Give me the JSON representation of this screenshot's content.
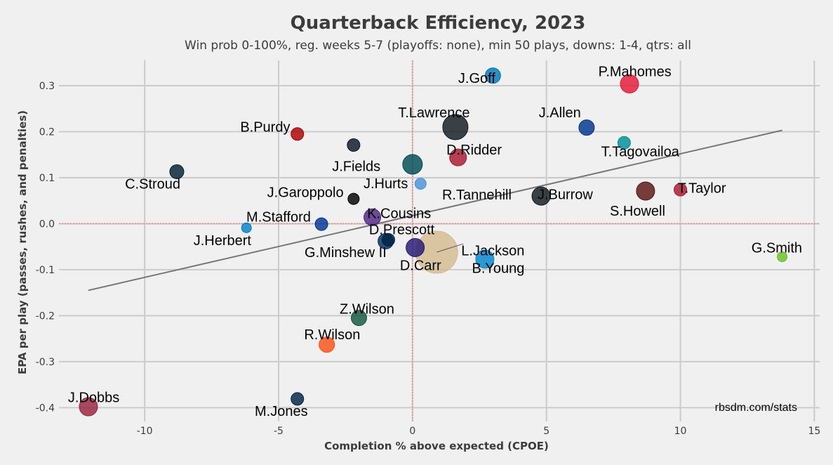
{
  "chart_data": {
    "type": "scatter",
    "title": "Quarterback Efficiency, 2023",
    "subtitle": "Win prob 0-100%, reg. weeks 5-7 (playoffs: none), min 50 plays, downs: 1-4, qtrs: all",
    "xlabel": "Completion % above expected (CPOE)",
    "ylabel": "EPA per play (passes, rushes, and penalties)",
    "xlim": [
      -13.2,
      15.2
    ],
    "ylim": [
      -0.43,
      0.355
    ],
    "xticks": [
      -10,
      -5,
      0,
      5,
      10,
      15
    ],
    "yticks": [
      -0.4,
      -0.3,
      -0.2,
      -0.1,
      0.0,
      0.1,
      0.2,
      0.3
    ],
    "ref_x": 0,
    "ref_y": 0,
    "ref_color": "#e8868c",
    "trend": {
      "x": [
        -12.1,
        13.8
      ],
      "y": [
        -0.145,
        0.203
      ],
      "color": "#777777"
    },
    "credit": "rbsdm.com/stats",
    "points": [
      {
        "name": "P.Mahomes",
        "x": 8.1,
        "y": 0.304,
        "size": 13,
        "color": "#e31837",
        "label_dx": 0.2,
        "label_dy": 0.027
      },
      {
        "name": "J.Goff",
        "x": 3.0,
        "y": 0.322,
        "size": 11,
        "color": "#0076b6",
        "label_dx": -0.6,
        "label_dy": -0.005
      },
      {
        "name": "T.Lawrence",
        "x": 1.6,
        "y": 0.21,
        "size": 18,
        "color": "#101820",
        "label_dx": -0.8,
        "label_dy": 0.032
      },
      {
        "name": "J.Allen",
        "x": 6.5,
        "y": 0.209,
        "size": 11,
        "color": "#00338d",
        "label_dx": -1.0,
        "label_dy": 0.033
      },
      {
        "name": "T.Tagovailoa",
        "x": 7.9,
        "y": 0.176,
        "size": 9,
        "color": "#008e97",
        "label_dx": 0.6,
        "label_dy": -0.019
      },
      {
        "name": "B.Purdy",
        "x": -4.3,
        "y": 0.195,
        "size": 9,
        "color": "#aa0000",
        "label_dx": -1.2,
        "label_dy": 0.016
      },
      {
        "name": "D.Ridder",
        "x": 1.7,
        "y": 0.144,
        "size": 12,
        "color": "#a71930",
        "label_dx": 0.6,
        "label_dy": 0.017
      },
      {
        "name": "J.Fields",
        "x": -2.2,
        "y": 0.171,
        "size": 9,
        "color": "#0b162a",
        "label_dx": 0.1,
        "label_dy": -0.046
      },
      {
        "name": "C.Stroud",
        "x": -8.8,
        "y": 0.113,
        "size": 10,
        "color": "#03202f",
        "label_dx": -0.9,
        "label_dy": -0.026
      },
      {
        "name": "J.Hurts",
        "x": 0.0,
        "y": 0.129,
        "size": 14,
        "color": "#004c54",
        "label_dx": -1.0,
        "label_dy": -0.041
      },
      {
        "name": "R.Tannehill",
        "x": 0.3,
        "y": 0.087,
        "size": 8,
        "color": "#4b92db",
        "label_dx": 2.1,
        "label_dy": -0.024
      },
      {
        "name": "T.Taylor",
        "x": 10.0,
        "y": 0.074,
        "size": 9,
        "color": "#a71930",
        "label_dx": 0.8,
        "label_dy": 0.004
      },
      {
        "name": "S.Howell",
        "x": 8.7,
        "y": 0.071,
        "size": 13,
        "color": "#5a1414",
        "label_dx": -0.3,
        "label_dy": -0.043
      },
      {
        "name": "J.Burrow",
        "x": 4.8,
        "y": 0.06,
        "size": 13,
        "color": "#101820",
        "label_dx": 0.9,
        "label_dy": 0.004
      },
      {
        "name": "J.Garoppolo",
        "x": -2.2,
        "y": 0.054,
        "size": 8,
        "color": "#000000",
        "label_dx": -1.8,
        "label_dy": 0.015
      },
      {
        "name": "K.Cousins",
        "x": -1.5,
        "y": 0.014,
        "size": 12,
        "color": "#4f2683",
        "label_dx": 1.0,
        "label_dy": 0.009
      },
      {
        "name": "M.Stafford",
        "x": -3.4,
        "y": -0.001,
        "size": 9,
        "color": "#003594",
        "label_dx": -1.6,
        "label_dy": 0.016
      },
      {
        "name": "J.Herbert",
        "x": -6.2,
        "y": -0.009,
        "size": 7,
        "color": "#0080c6",
        "label_dx": -0.9,
        "label_dy": -0.027
      },
      {
        "name": "D.Prescott",
        "x": -0.9,
        "y": -0.035,
        "size": 9,
        "color": "#002244",
        "label_dx": 0.5,
        "label_dy": 0.023
      },
      {
        "name": "G.Minshew II",
        "x": -1.0,
        "y": -0.038,
        "size": 11,
        "color": "#002c5f",
        "label_dx": -1.5,
        "label_dy": -0.024
      },
      {
        "name": "L.Jackson",
        "x": 0.1,
        "y": -0.052,
        "size": 13,
        "color": "#241773",
        "label_dx": 2.9,
        "label_dy": -0.006
      },
      {
        "name": "D.Carr",
        "x": 0.9,
        "y": -0.062,
        "size": 30,
        "color": "#d3bc8d",
        "label_dx": -0.6,
        "label_dy": -0.028
      },
      {
        "name": "B.Young",
        "x": 2.7,
        "y": -0.077,
        "size": 13,
        "color": "#0085ca",
        "label_dx": 0.5,
        "label_dy": -0.019
      },
      {
        "name": "G.Smith",
        "x": 13.8,
        "y": -0.072,
        "size": 7,
        "color": "#69be28",
        "label_dx": -0.2,
        "label_dy": 0.02
      },
      {
        "name": "Z.Wilson",
        "x": -2.0,
        "y": -0.205,
        "size": 11,
        "color": "#125740",
        "label_dx": 0.3,
        "label_dy": 0.02
      },
      {
        "name": "R.Wilson",
        "x": -3.2,
        "y": -0.263,
        "size": 11,
        "color": "#fb4f14",
        "label_dx": 0.2,
        "label_dy": 0.022
      },
      {
        "name": "J.Dobbs",
        "x": -12.1,
        "y": -0.398,
        "size": 13,
        "color": "#97233f",
        "label_dx": 0.2,
        "label_dy": 0.021
      },
      {
        "name": "M.Jones",
        "x": -4.3,
        "y": -0.381,
        "size": 9,
        "color": "#002244",
        "label_dx": -0.6,
        "label_dy": -0.026
      }
    ]
  }
}
